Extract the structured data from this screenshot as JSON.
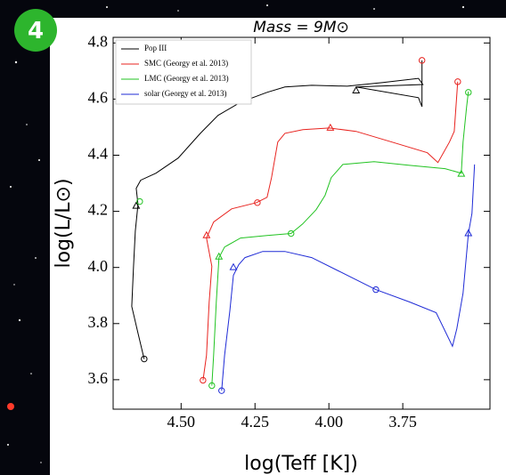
{
  "chart_data": {
    "type": "line",
    "badge": "4",
    "title": "Mass = 9M⊙",
    "x_label": "log(Teff [K])",
    "y_label": "log(L/L⊙)",
    "xlim": [
      4.73,
      3.455
    ],
    "ylim": [
      3.495,
      4.82
    ],
    "xticks": [
      {
        "value": 4.5,
        "label": "4.50"
      },
      {
        "value": 4.25,
        "label": "4.25"
      },
      {
        "value": 4.0,
        "label": "4.00"
      },
      {
        "value": 3.75,
        "label": "3.75"
      }
    ],
    "yticks": [
      {
        "value": 3.6,
        "label": "3.6"
      },
      {
        "value": 3.8,
        "label": "3.8"
      },
      {
        "value": 4.0,
        "label": "4.0"
      },
      {
        "value": 4.2,
        "label": "4.2"
      },
      {
        "value": 4.4,
        "label": "4.4"
      },
      {
        "value": 4.6,
        "label": "4.6"
      },
      {
        "value": 4.8,
        "label": "4.8"
      }
    ],
    "legend": "upper left",
    "series": [
      {
        "name": "Pop III",
        "color": "#000000",
        "x": [
          4.625,
          4.646,
          4.667,
          4.661,
          4.655,
          4.646,
          4.652,
          4.637,
          4.585,
          4.51,
          4.435,
          4.375,
          4.299,
          4.209,
          4.149,
          4.058,
          3.938,
          3.817,
          3.697,
          3.682,
          3.908,
          3.697,
          3.685,
          3.685
        ],
        "values": [
          3.674,
          3.766,
          3.861,
          4.004,
          4.13,
          4.225,
          4.282,
          4.311,
          4.336,
          4.39,
          4.478,
          4.542,
          4.589,
          4.624,
          4.643,
          4.649,
          4.646,
          4.659,
          4.674,
          4.652,
          4.643,
          4.605,
          4.573,
          4.738
        ],
        "markers": [
          {
            "shape": "circle",
            "x": 4.625,
            "y": 3.674
          },
          {
            "shape": "triangle",
            "x": 4.652,
            "y": 4.219
          },
          {
            "shape": "triangle",
            "x": 3.908,
            "y": 4.63
          }
        ]
      },
      {
        "name": "SMC (Georgy et al. 2013)",
        "color": "#e8231f",
        "x": [
          4.426,
          4.414,
          4.405,
          4.396,
          4.414,
          4.39,
          4.329,
          4.245,
          4.209,
          4.194,
          4.173,
          4.149,
          4.088,
          3.998,
          3.908,
          3.787,
          3.667,
          3.631,
          3.592,
          3.576,
          3.564
        ],
        "values": [
          3.598,
          3.687,
          3.877,
          4.004,
          4.105,
          4.162,
          4.209,
          4.231,
          4.25,
          4.32,
          4.447,
          4.478,
          4.491,
          4.497,
          4.485,
          4.447,
          4.409,
          4.374,
          4.447,
          4.485,
          4.662
        ],
        "markers": [
          {
            "shape": "circle",
            "x": 4.426,
            "y": 3.598
          },
          {
            "shape": "triangle",
            "x": 4.414,
            "y": 4.114
          },
          {
            "shape": "circle",
            "x": 4.242,
            "y": 4.231
          },
          {
            "shape": "triangle",
            "x": 3.995,
            "y": 4.497
          },
          {
            "shape": "circle",
            "x": 3.564,
            "y": 4.662
          },
          {
            "shape": "circle",
            "x": 3.685,
            "y": 4.738
          }
        ]
      },
      {
        "name": "LMC (Georgy et al. 2013)",
        "color": "#22c322",
        "x": [
          4.396,
          4.39,
          4.381,
          4.372,
          4.353,
          4.299,
          4.209,
          4.128,
          4.089,
          4.043,
          4.013,
          3.992,
          3.953,
          3.847,
          3.727,
          3.607,
          3.552,
          3.546,
          3.534,
          3.528
        ],
        "values": [
          3.579,
          3.687,
          3.877,
          4.035,
          4.073,
          4.105,
          4.114,
          4.121,
          4.155,
          4.206,
          4.257,
          4.32,
          4.367,
          4.377,
          4.364,
          4.352,
          4.336,
          4.447,
          4.573,
          4.627
        ],
        "markers": [
          {
            "shape": "circle",
            "x": 4.396,
            "y": 3.579
          },
          {
            "shape": "circle",
            "x": 4.64,
            "y": 4.235
          },
          {
            "shape": "triangle",
            "x": 4.372,
            "y": 4.038
          },
          {
            "shape": "circle",
            "x": 4.128,
            "y": 4.121
          },
          {
            "shape": "triangle",
            "x": 3.552,
            "y": 4.333
          },
          {
            "shape": "circle",
            "x": 3.528,
            "y": 4.624
          }
        ]
      },
      {
        "name": "solar (Georgy et al. 2013)",
        "color": "#1f2bd6",
        "x": [
          4.363,
          4.353,
          4.335,
          4.323,
          4.305,
          4.284,
          4.224,
          4.149,
          4.058,
          3.968,
          3.841,
          3.727,
          3.637,
          3.582,
          3.567,
          3.546,
          3.528,
          3.516,
          3.507
        ],
        "values": [
          3.561,
          3.687,
          3.845,
          3.972,
          4.01,
          4.035,
          4.057,
          4.057,
          4.035,
          3.988,
          3.921,
          3.877,
          3.839,
          3.719,
          3.782,
          3.909,
          4.121,
          4.193,
          4.367
        ],
        "markers": [
          {
            "shape": "circle",
            "x": 4.363,
            "y": 3.561
          },
          {
            "shape": "triangle",
            "x": 4.323,
            "y": 4.0
          },
          {
            "shape": "circle",
            "x": 3.841,
            "y": 3.921
          },
          {
            "shape": "triangle",
            "x": 3.528,
            "y": 4.121
          }
        ]
      }
    ]
  }
}
